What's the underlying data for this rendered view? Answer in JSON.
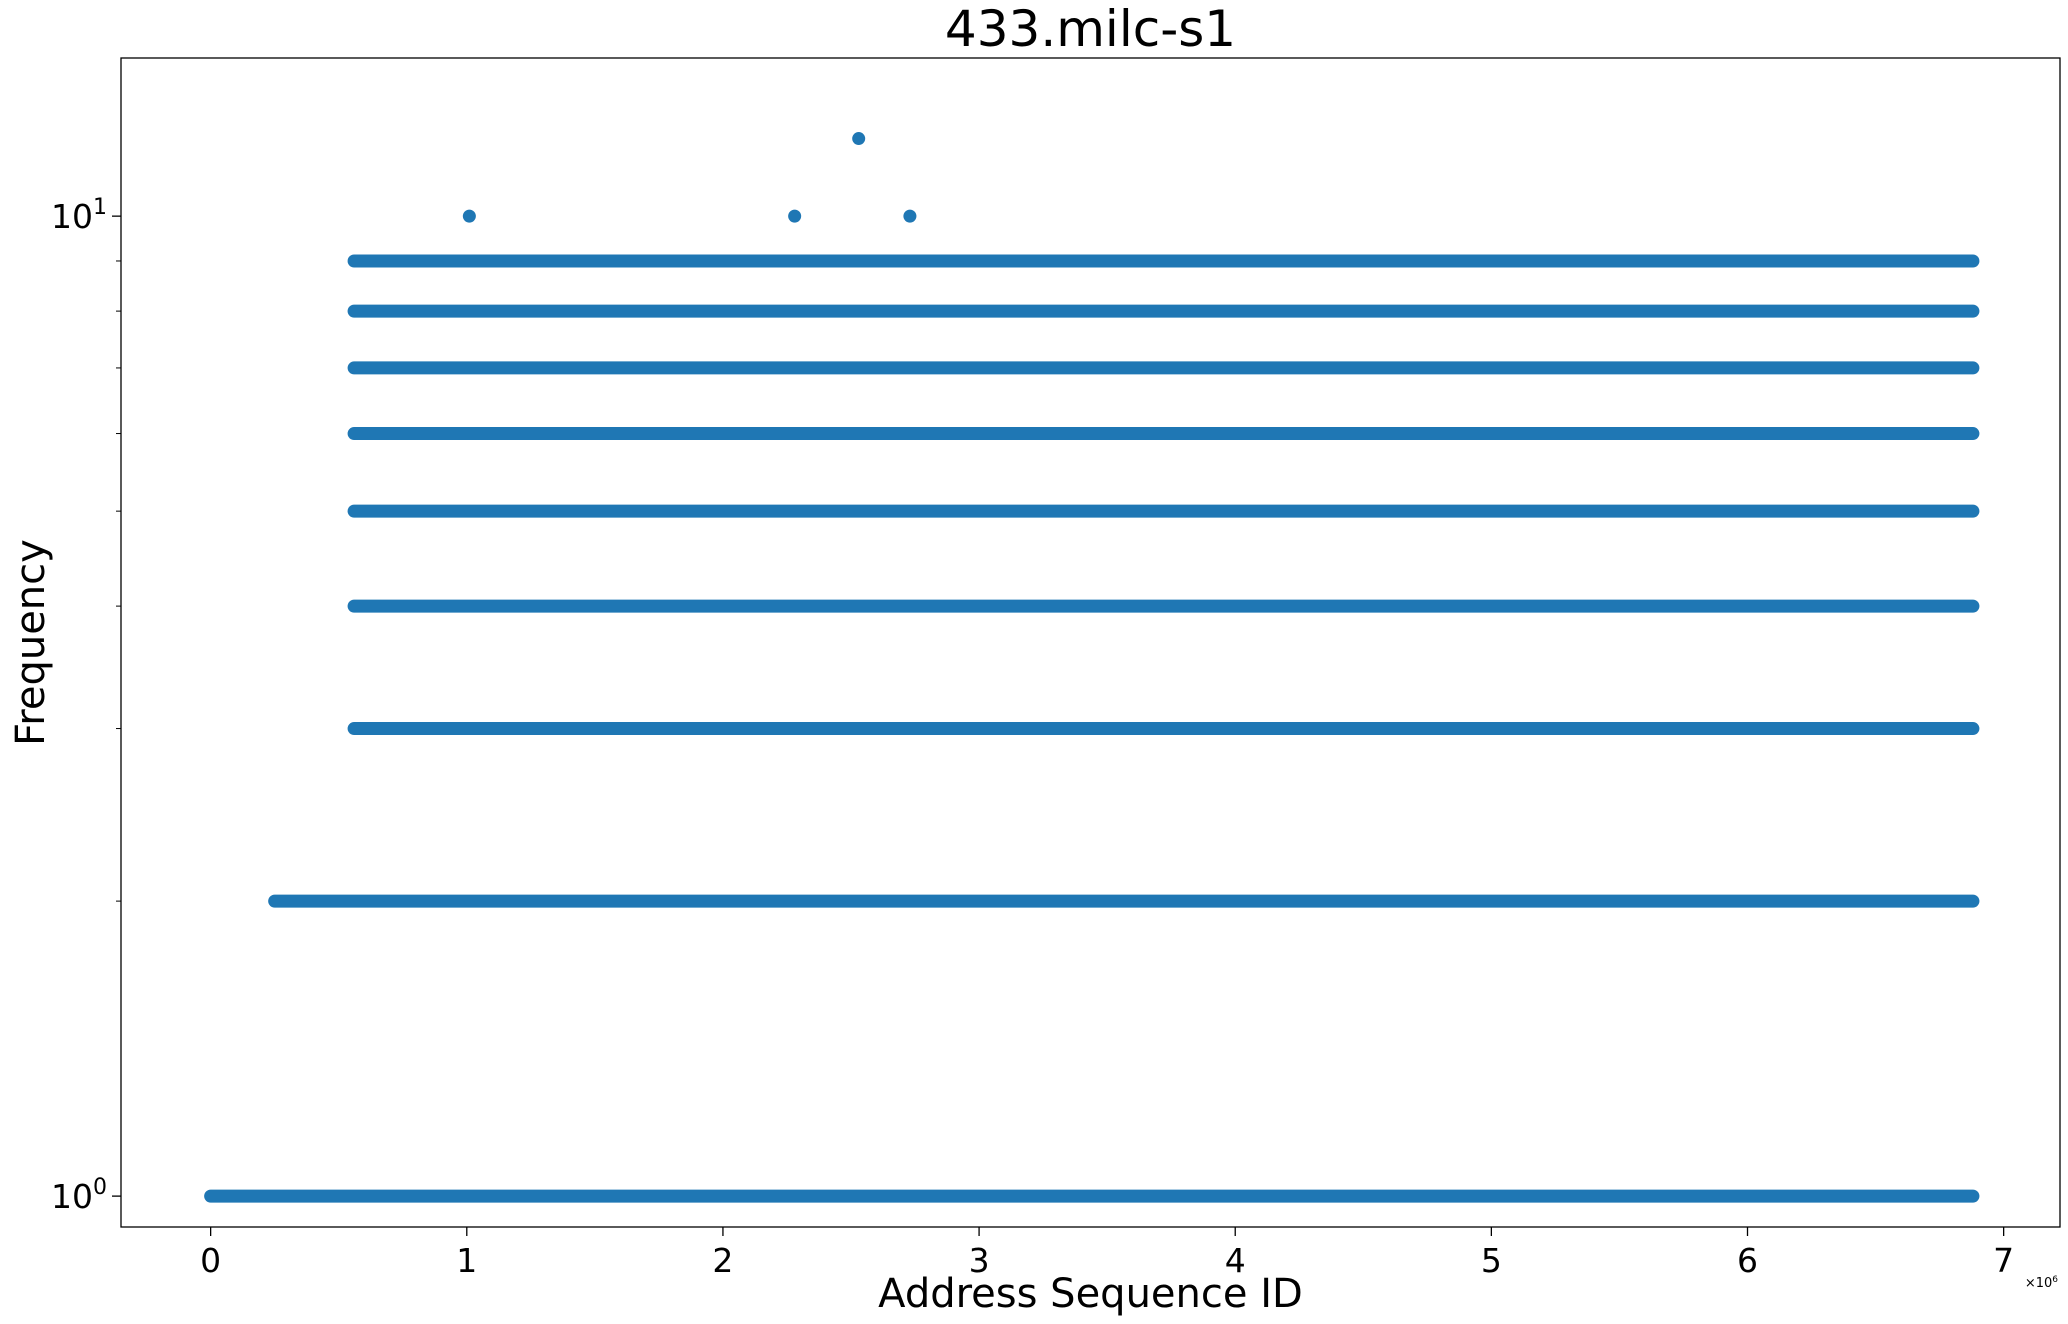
{
  "chart_data": {
    "type": "scatter",
    "title": "433.milc-s1",
    "xlabel": "Address Sequence ID",
    "ylabel": "Frequency",
    "x_offset_label": {
      "base": "×10",
      "exponent": "6"
    },
    "xlim": [
      -0.35,
      7.22
    ],
    "ylim": [
      0.93,
      14.5
    ],
    "yscale": "log",
    "grid": false,
    "marker_color": "#1f77b4",
    "x_ticks": [
      {
        "value": 0,
        "label": "0"
      },
      {
        "value": 1,
        "label": "1"
      },
      {
        "value": 2,
        "label": "2"
      },
      {
        "value": 3,
        "label": "3"
      },
      {
        "value": 4,
        "label": "4"
      },
      {
        "value": 5,
        "label": "5"
      },
      {
        "value": 6,
        "label": "6"
      },
      {
        "value": 7,
        "label": "7"
      }
    ],
    "y_major_ticks": [
      {
        "value": 1,
        "base": "10",
        "exponent": "0"
      },
      {
        "value": 10,
        "base": "10",
        "exponent": "1"
      }
    ],
    "y_minor_ticks": [
      2,
      3,
      4,
      5,
      6,
      7,
      8,
      9
    ],
    "dense_bands": [
      {
        "y": 1,
        "x_start": 0.0,
        "x_end": 6.88
      },
      {
        "y": 2,
        "x_start": 0.25,
        "x_end": 6.88
      },
      {
        "y": 3,
        "x_start": 0.56,
        "x_end": 6.88
      },
      {
        "y": 4,
        "x_start": 0.56,
        "x_end": 6.88
      },
      {
        "y": 5,
        "x_start": 0.56,
        "x_end": 6.88
      },
      {
        "y": 6,
        "x_start": 0.56,
        "x_end": 6.88
      },
      {
        "y": 7,
        "x_start": 0.56,
        "x_end": 6.88
      },
      {
        "y": 8,
        "x_start": 0.56,
        "x_end": 6.88
      },
      {
        "y": 9,
        "x_start": 0.56,
        "x_end": 6.88
      }
    ],
    "points": [
      {
        "x": 1.01,
        "y": 10
      },
      {
        "x": 2.28,
        "y": 10
      },
      {
        "x": 2.73,
        "y": 10
      },
      {
        "x": 2.53,
        "y": 12
      }
    ]
  }
}
